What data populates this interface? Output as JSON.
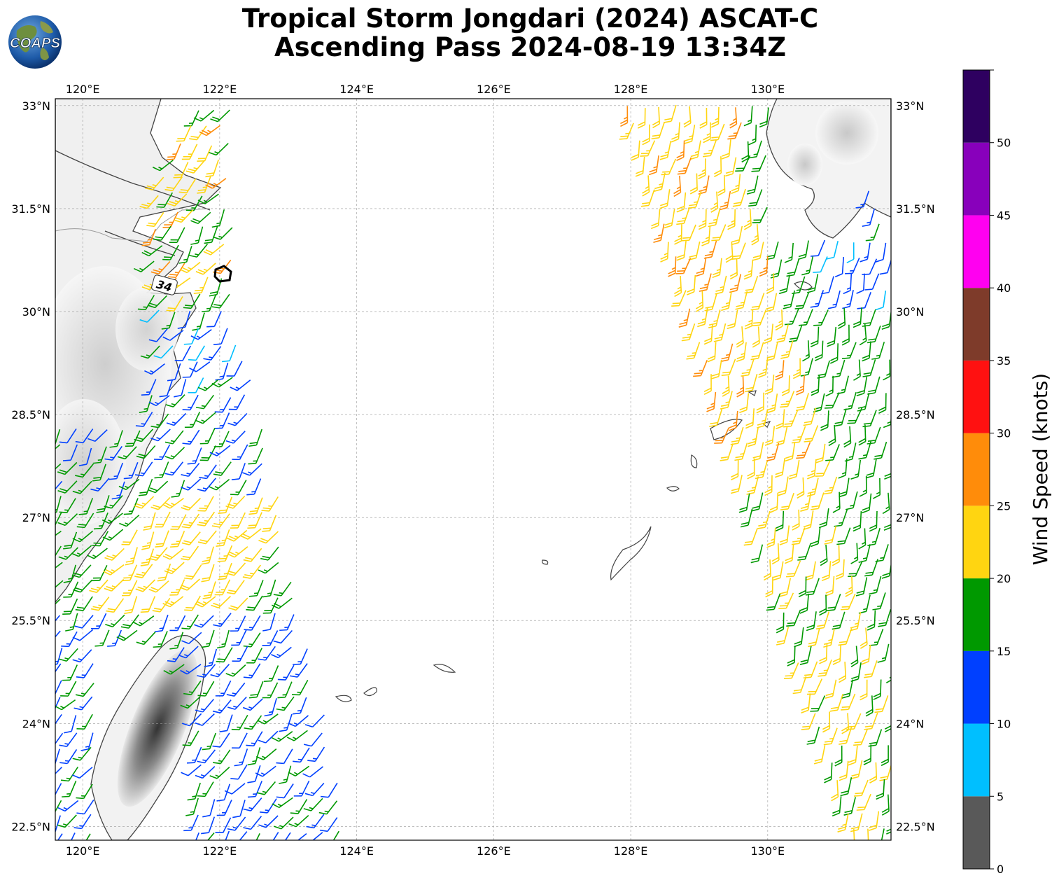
{
  "header": {
    "logo_text": "COAPS",
    "title_line1": "Tropical Storm Jongdari (2024) ASCAT-C",
    "title_line2": "Ascending Pass 2024-08-19 13:34Z"
  },
  "map": {
    "lon_range": [
      119.6,
      131.8
    ],
    "lat_range": [
      22.3,
      33.1
    ],
    "lon_ticks": [
      "120°E",
      "122°E",
      "124°E",
      "126°E",
      "128°E",
      "130°E"
    ],
    "lon_tick_values": [
      120,
      122,
      124,
      126,
      128,
      130
    ],
    "lat_ticks": [
      "33°N",
      "31.5°N",
      "30°N",
      "28.5°N",
      "27°N",
      "25.5°N",
      "24°N",
      "22.5°N"
    ],
    "lat_tick_values": [
      33,
      31.5,
      30,
      28.5,
      27,
      25.5,
      24,
      22.5
    ],
    "wind_radius_label": "34"
  },
  "colorbar": {
    "title": "Wind Speed (knots)",
    "ticks": [
      "0",
      "5",
      "10",
      "15",
      "20",
      "25",
      "30",
      "35",
      "40",
      "45",
      "50"
    ],
    "bins": [
      {
        "from": 0,
        "to": 5,
        "color": "#595959"
      },
      {
        "from": 5,
        "to": 10,
        "color": "#00bfff"
      },
      {
        "from": 10,
        "to": 15,
        "color": "#0040ff"
      },
      {
        "from": 15,
        "to": 20,
        "color": "#009900"
      },
      {
        "from": 20,
        "to": 25,
        "color": "#ffd511"
      },
      {
        "from": 25,
        "to": 30,
        "color": "#ff8c0a"
      },
      {
        "from": 30,
        "to": 35,
        "color": "#ff1111"
      },
      {
        "from": 35,
        "to": 40,
        "color": "#7e3b2a"
      },
      {
        "from": 40,
        "to": 45,
        "color": "#ff00f0"
      },
      {
        "from": 45,
        "to": 50,
        "color": "#8800bb"
      },
      {
        "from": 50,
        "to": 55,
        "color": "#2e0060"
      }
    ]
  }
}
